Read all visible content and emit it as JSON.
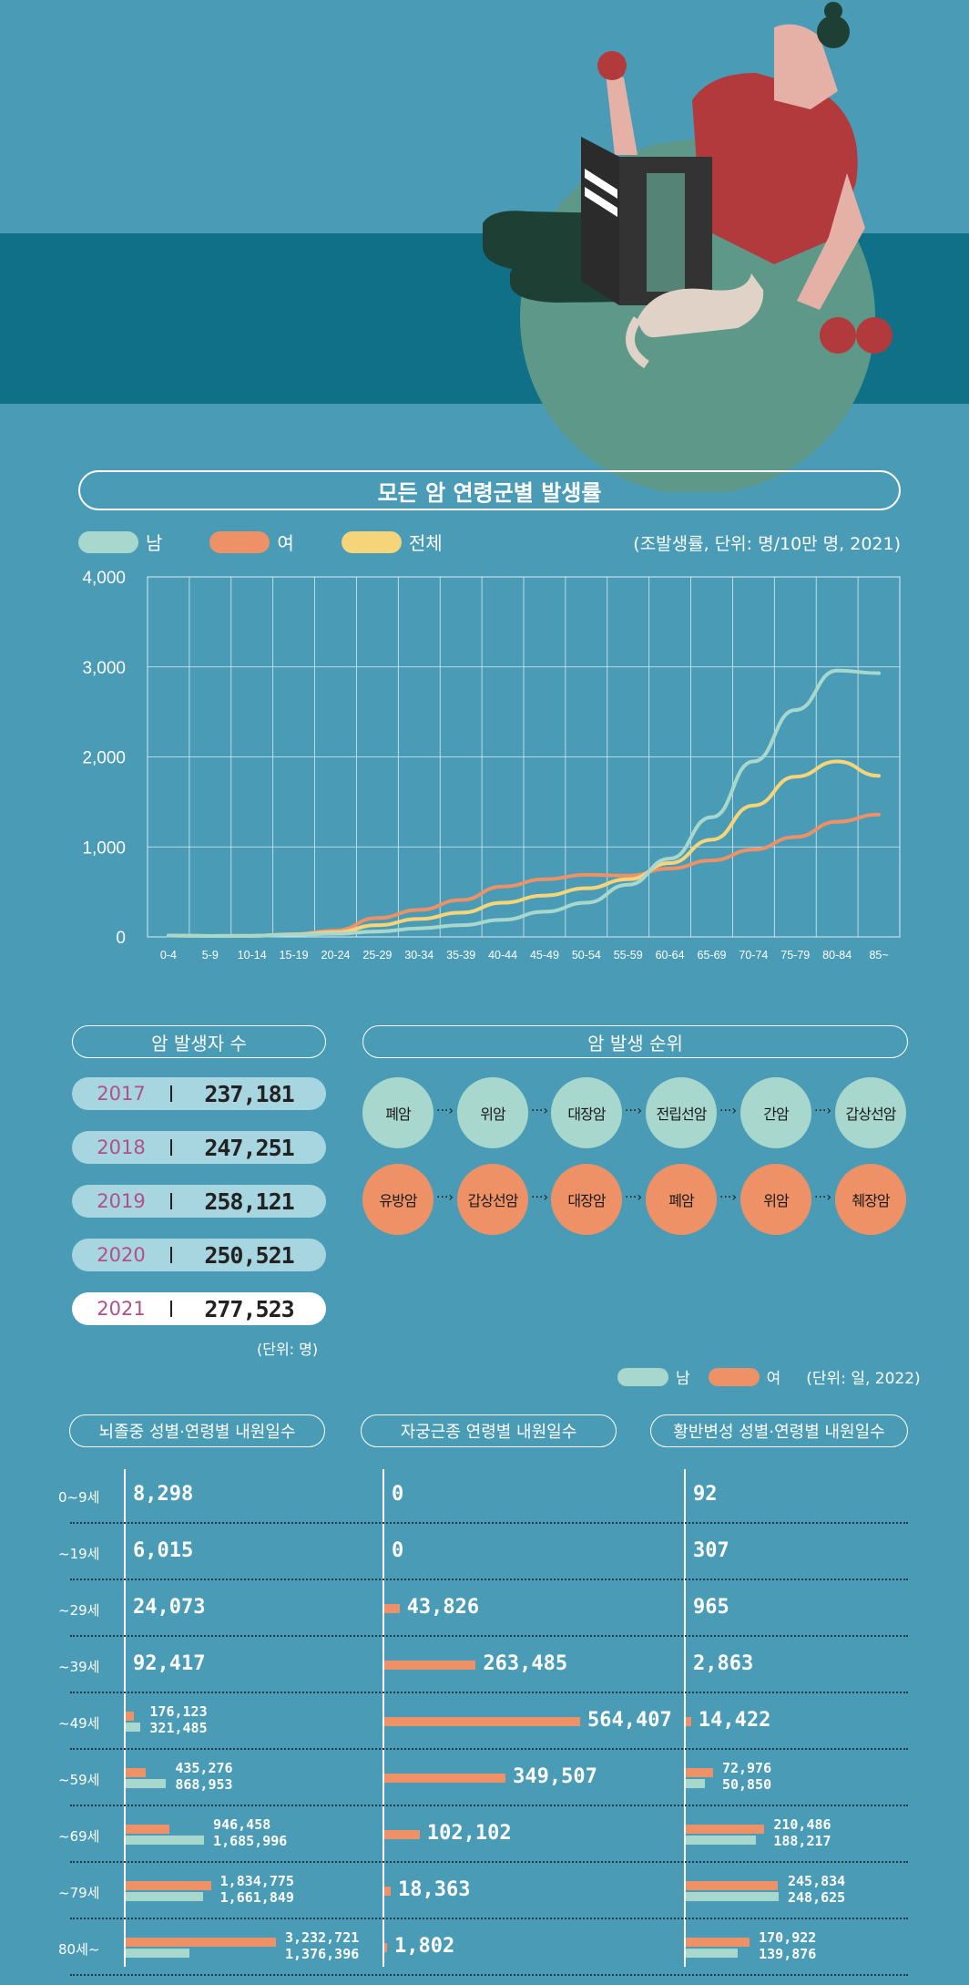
{
  "colors": {
    "male": "#a8d8cd",
    "female": "#ee9166",
    "total": "#f6d57a",
    "bg": "#4a9cb6",
    "band": "#0f7088"
  },
  "chart_title": "모든 암 연령군별 발생률",
  "chart_data": {
    "type": "line",
    "title": "모든 암 연령군별 발생률",
    "unit_note": "(조발생률, 단위: 명/10만 명, 2021)",
    "categories": [
      "0-4",
      "5-9",
      "10-14",
      "15-19",
      "20-24",
      "25-29",
      "30-34",
      "35-39",
      "40-44",
      "45-49",
      "50-54",
      "55-59",
      "60-64",
      "65-69",
      "70-74",
      "75-79",
      "80-84",
      "85~"
    ],
    "y_ticks": [
      "4,000",
      "3,000",
      "2,000",
      "1,000",
      "0"
    ],
    "ylim": [
      0,
      4000
    ],
    "grid": true,
    "legend_position": "top-left",
    "series": [
      {
        "name": "남",
        "color": "#a8d8cd",
        "values": [
          15,
          10,
          12,
          25,
          35,
          60,
          95,
          130,
          190,
          280,
          380,
          580,
          870,
          1330,
          1950,
          2520,
          2960,
          2930
        ]
      },
      {
        "name": "여",
        "color": "#ee9166",
        "values": [
          15,
          10,
          12,
          30,
          70,
          210,
          300,
          410,
          560,
          640,
          690,
          680,
          760,
          850,
          970,
          1110,
          1280,
          1360
        ]
      },
      {
        "name": "전체",
        "color": "#f6d57a",
        "values": [
          15,
          10,
          12,
          28,
          52,
          130,
          200,
          270,
          380,
          460,
          540,
          640,
          820,
          1080,
          1460,
          1780,
          1950,
          1790
        ]
      }
    ]
  },
  "incidence": {
    "title": "암 발생자 수",
    "unit": "(단위: 명)",
    "rows": [
      {
        "year": "2017",
        "count": "237,181"
      },
      {
        "year": "2018",
        "count": "247,251"
      },
      {
        "year": "2019",
        "count": "258,121"
      },
      {
        "year": "2020",
        "count": "250,521"
      },
      {
        "year": "2021",
        "count": "277,523"
      }
    ]
  },
  "ranking": {
    "title": "암 발생 순위",
    "male": [
      "폐암",
      "위암",
      "대장암",
      "전립선암",
      "간암",
      "갑상선암"
    ],
    "female": [
      "유방암",
      "갑상선암",
      "대장암",
      "폐암",
      "위암",
      "췌장암"
    ]
  },
  "bottom_legend": {
    "male": "남",
    "female": "여",
    "unit": "(단위: 일, 2022)"
  },
  "hospital_days": {
    "ages": [
      "0~9세",
      "~19세",
      "~29세",
      "~39세",
      "~49세",
      "~59세",
      "~69세",
      "~79세",
      "80세~"
    ],
    "stroke": {
      "title": "뇌졸중 성별·연령별 내원일수",
      "rows": [
        {
          "single": "8,298"
        },
        {
          "single": "6,015"
        },
        {
          "single": "24,073"
        },
        {
          "single": "92,417"
        },
        {
          "female": "176,123",
          "male": "321,485",
          "f": 176123,
          "m": 321485
        },
        {
          "female": "435,276",
          "male": "868,953",
          "f": 435276,
          "m": 868953
        },
        {
          "female": "946,458",
          "male": "1,685,996",
          "f": 946458,
          "m": 1685996
        },
        {
          "female": "1,834,775",
          "male": "1,661,849",
          "f": 1834775,
          "m": 1661849
        },
        {
          "female": "3,232,721",
          "male": "1,376,396",
          "f": 3232721,
          "m": 1376396
        }
      ]
    },
    "uterine": {
      "title": "자궁근종 연령별 내원일수",
      "rows": [
        {
          "female": "0",
          "f": 0
        },
        {
          "female": "0",
          "f": 0
        },
        {
          "female": "43,826",
          "f": 43826
        },
        {
          "female": "263,485",
          "f": 263485
        },
        {
          "female": "564,407",
          "f": 564407
        },
        {
          "female": "349,507",
          "f": 349507
        },
        {
          "female": "102,102",
          "f": 102102
        },
        {
          "female": "18,363",
          "f": 18363
        },
        {
          "female": "1,802",
          "f": 1802
        }
      ]
    },
    "macular": {
      "title": "황반변성 성별·연령별 내원일수",
      "rows": [
        {
          "single": "92"
        },
        {
          "single": "307"
        },
        {
          "single": "965"
        },
        {
          "single": "2,863"
        },
        {
          "single": "14,422",
          "f": 14422
        },
        {
          "female": "72,976",
          "male": "50,850",
          "f": 72976,
          "m": 50850
        },
        {
          "female": "210,486",
          "male": "188,217",
          "f": 210486,
          "m": 188217
        },
        {
          "female": "245,834",
          "male": "248,625",
          "f": 245834,
          "m": 248625
        },
        {
          "female": "170,922",
          "male": "139,876",
          "f": 170922,
          "m": 139876
        }
      ]
    }
  }
}
